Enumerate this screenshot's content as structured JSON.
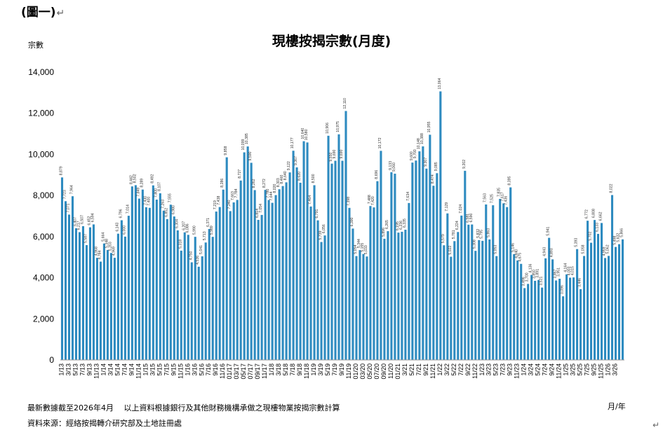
{
  "figure_label": "(圖一)",
  "paragraph_mark": "↵",
  "notes": [
    "最新數據截至2026年4月　 以上資料根據銀行及其他財務機構承做之現樓物業按揭宗數計算",
    "資料來源：經絡按揭轉介研究部及土地註冊處"
  ],
  "chart_data": {
    "type": "bar",
    "title": "現樓按揭宗數(月度)",
    "ylabel": "宗數",
    "xlabel": "月/年",
    "ylim": [
      0,
      14000
    ],
    "yticks": [
      0,
      2000,
      4000,
      6000,
      8000,
      10000,
      12000,
      14000
    ],
    "ytick_labels": [
      "0",
      "2,000",
      "4,000",
      "6,000",
      "8,000",
      "10,000",
      "12,000",
      "14,000"
    ],
    "grid": false,
    "bar_color": "#2E8BC0",
    "x_tick_labels": [
      "1/13",
      "3/13",
      "5/13",
      "7/13",
      "9/13",
      "11/13",
      "1/14",
      "3/14",
      "5/14",
      "7/14",
      "9/14",
      "11/14",
      "1/15",
      "3/15",
      "5/15",
      "7/15",
      "9/15",
      "11/15",
      "1/16",
      "3/16",
      "5/16",
      "7/16",
      "9/16",
      "11/16",
      "01/17",
      "03/17",
      "05/17",
      "07/17",
      "09/17",
      "11/17",
      "1/18",
      "3/18",
      "5/18",
      "7/18",
      "9/18",
      "11/18",
      "1/19",
      "3/19",
      "5/19",
      "7/19",
      "9/19",
      "11/19",
      "01/20",
      "03/20",
      "05/20",
      "07/20",
      "09/20",
      "11/20",
      "01/21",
      "3/21",
      "5/21",
      "7/21",
      "9/21",
      "11/21",
      "1/22",
      "3/22",
      "5/22",
      "7/22",
      "9/22",
      "11/22",
      "1/23",
      "3/23",
      "5/23",
      "7/23",
      "9/23",
      "11/23",
      "1/24",
      "3/24",
      "5/24",
      "7/24",
      "9/24",
      "11/24",
      "1/25",
      "3/25",
      "5/25",
      "7/25",
      "9/25",
      "11/25",
      "1/26",
      "3/26"
    ],
    "values": [
      8879,
      7723,
      7071,
      7964,
      6407,
      6217,
      6507,
      5587,
      6452,
      6594,
      4968,
      4784,
      5664,
      5348,
      5203,
      4969,
      6143,
      6796,
      6000,
      7014,
      8442,
      8502,
      7849,
      8289,
      7430,
      7400,
      8492,
      7800,
      8107,
      7263,
      6852,
      7555,
      6980,
      6304,
      5318,
      6207,
      6086,
      4750,
      5990,
      4536,
      5041,
      5713,
      6371,
      5989,
      7219,
      7438,
      8286,
      9858,
      7240,
      7663,
      7784,
      8727,
      10099,
      10385,
      9590,
      8262,
      6814,
      7054,
      8272,
      7780,
      7644,
      8020,
      8303,
      8460,
      8640,
      9122,
      10177,
      9367,
      8620,
      10640,
      10580,
      7464,
      8500,
      6791,
      5739,
      6056,
      10906,
      9550,
      9690,
      10975,
      9690,
      12110,
      7398,
      6390,
      5054,
      5344,
      5155,
      5033,
      7488,
      7420,
      8696,
      10172,
      5896,
      6265,
      9133,
      9060,
      6195,
      6236,
      6335,
      7634,
      9600,
      9700,
      10148,
      10388,
      9307,
      10955,
      8474,
      9085,
      13064,
      5579,
      7129,
      5022,
      5781,
      6224,
      7024,
      9202,
      6581,
      6590,
      5308,
      5832,
      5795,
      7563,
      5863,
      7525,
      5053,
      7835,
      7617,
      7436,
      8395,
      5146,
      4840,
      4675,
      3496,
      3700,
      4136,
      3850,
      3891,
      3521,
      4943,
      5941,
      4893,
      3867,
      3951,
      3096,
      4164,
      4003,
      4015,
      5393,
      3446,
      5058,
      6772,
      5702,
      6808,
      6133,
      6662,
      4959,
      5062,
      8022,
      5498,
      5632,
      5866
    ]
  }
}
